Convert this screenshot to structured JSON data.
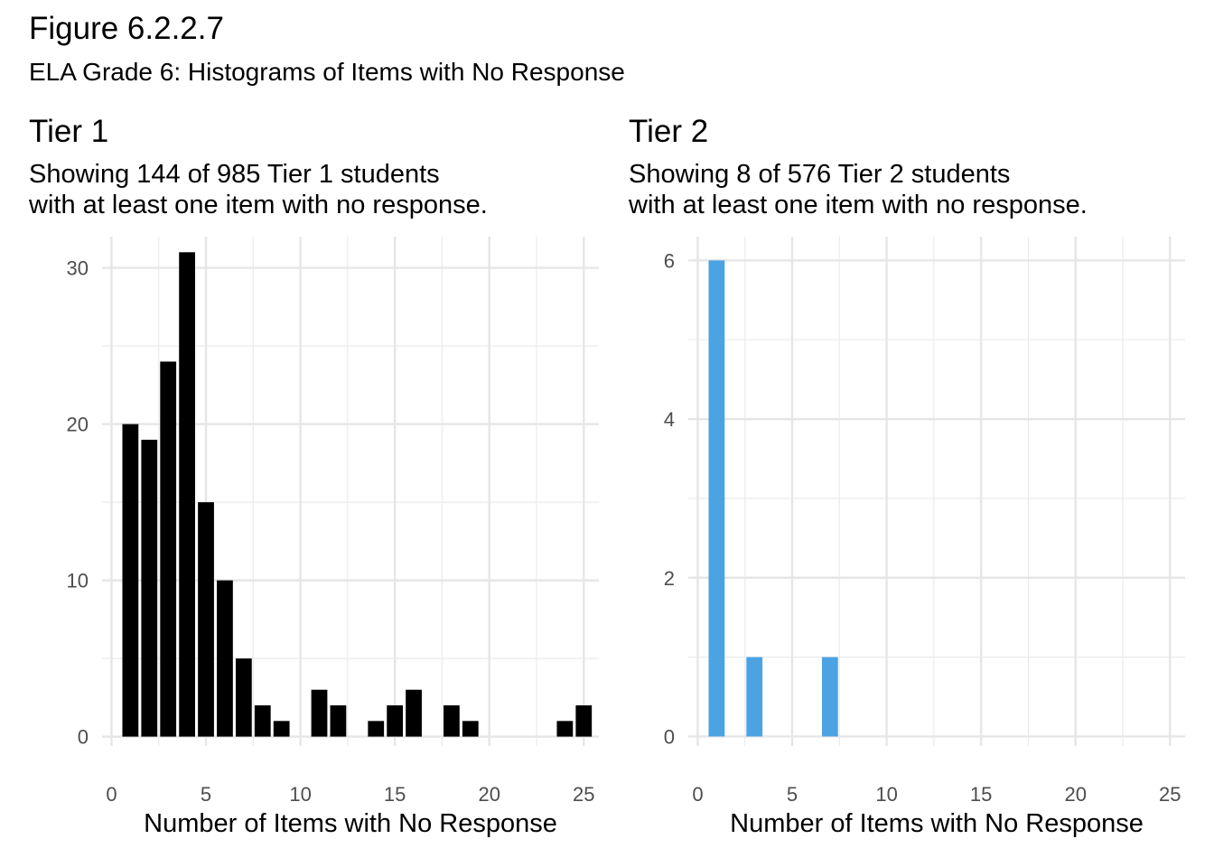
{
  "figure": {
    "title": "Figure 6.2.2.7",
    "subtitle": "ELA Grade 6: Histograms of Items with No Response"
  },
  "chart_data": [
    {
      "type": "bar",
      "title": "Tier 1",
      "subtitle_line1": "Showing 144 of 985 Tier 1 students",
      "subtitle_line2": "with at least one item with no response.",
      "xlabel": "Number of Items with No Response",
      "ylabel": "",
      "xlim": [
        -0.5,
        25.8
      ],
      "ylim": [
        -0.6,
        32
      ],
      "xticks": [
        0,
        5,
        10,
        15,
        20,
        25
      ],
      "yticks": [
        0,
        10,
        20,
        30
      ],
      "color": "#000000",
      "bin_width": 0.85,
      "x": [
        1,
        2,
        3,
        4,
        5,
        6,
        7,
        8,
        9,
        11,
        12,
        14,
        15,
        16,
        18,
        19,
        24,
        25
      ],
      "values": [
        20,
        19,
        24,
        31,
        15,
        10,
        5,
        2,
        1,
        3,
        2,
        1,
        2,
        3,
        2,
        1,
        1,
        2
      ],
      "grid": true
    },
    {
      "type": "bar",
      "title": "Tier 2",
      "subtitle_line1": "Showing 8 of 576 Tier 2 students",
      "subtitle_line2": "with at least one item with no response.",
      "xlabel": "Number of Items with No Response",
      "ylabel": "",
      "xlim": [
        -0.5,
        25.8
      ],
      "ylim": [
        -0.12,
        6.3
      ],
      "xticks": [
        0,
        5,
        10,
        15,
        20,
        25
      ],
      "yticks": [
        0,
        2,
        4,
        6
      ],
      "color": "#4ba3e3",
      "bin_width": 0.85,
      "x": [
        1,
        3,
        7
      ],
      "values": [
        6,
        1,
        1
      ],
      "grid": true
    }
  ]
}
